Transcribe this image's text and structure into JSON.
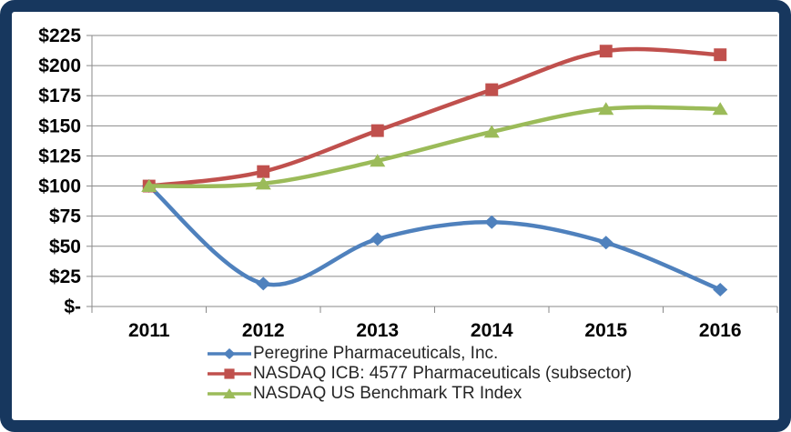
{
  "chart_data": {
    "type": "line",
    "title": "",
    "xlabel": "",
    "ylabel": "",
    "categories": [
      "2011",
      "2012",
      "2013",
      "2014",
      "2015",
      "2016"
    ],
    "y_tick_labels": [
      "$-",
      "$25",
      "$50",
      "$75",
      "$100",
      "$125",
      "$150",
      "$175",
      "$200",
      "$225"
    ],
    "ylim": [
      0,
      225
    ],
    "y_step": 25,
    "grid": true,
    "smooth_lines": true,
    "legend_position": "bottom",
    "series": [
      {
        "name": "Peregrine Pharmaceuticals, Inc.",
        "color": "#4F81BD",
        "marker": "diamond",
        "values": [
          100,
          19,
          56,
          70,
          53,
          14
        ]
      },
      {
        "name": "NASDAQ ICB: 4577 Pharmaceuticals (subsector)",
        "color": "#C0504D",
        "marker": "square",
        "values": [
          100,
          112,
          146,
          180,
          212,
          209
        ]
      },
      {
        "name": "NASDAQ US Benchmark TR Index",
        "color": "#9BBB59",
        "marker": "triangle",
        "values": [
          100,
          102,
          121,
          145,
          164,
          164
        ]
      }
    ]
  },
  "frame": {
    "border_color": "#17375E",
    "background": "#FFFFFF"
  },
  "axis": {
    "line_color": "#8A8A8A",
    "label_color": "#000000"
  }
}
